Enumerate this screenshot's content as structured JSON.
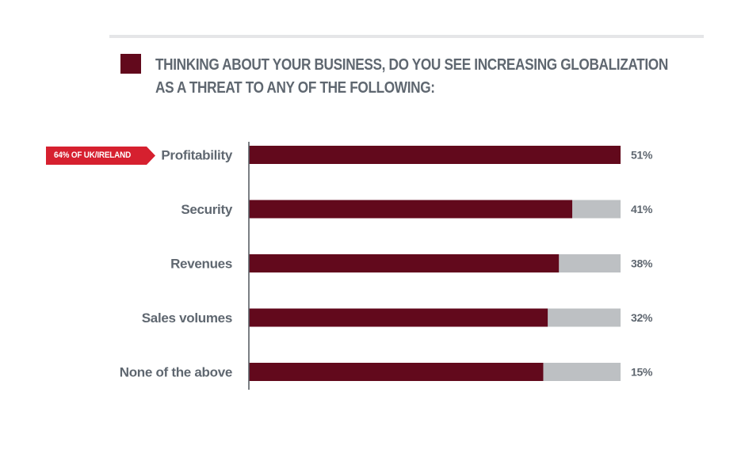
{
  "colors": {
    "bar_fill": "#62091c",
    "bar_track": "#bdc0c3",
    "title_marker": "#62091c",
    "text": "#5f6770",
    "callout_fill": "#d6202f",
    "axis": "#5a5f66"
  },
  "title": {
    "line1": "THINKING ABOUT YOUR BUSINESS, DO YOU SEE INCREASING GLOBALIZATION",
    "line2": "AS A THREAT TO ANY OF THE FOLLOWING:"
  },
  "callout": {
    "text": "64% OF UK/IRELAND",
    "category": "Profitability"
  },
  "chart_data": {
    "type": "bar",
    "orientation": "horizontal",
    "categories": [
      "Profitability",
      "Security",
      "Revenues",
      "Sales volumes",
      "None of the above"
    ],
    "values": [
      51,
      41,
      38,
      32,
      15
    ],
    "value_labels": [
      "51%",
      "41%",
      "38%",
      "32%",
      "15%"
    ],
    "title": "THINKING ABOUT YOUR BUSINESS, DO YOU SEE INCREASING GLOBALIZATION AS A THREAT TO ANY OF THE FOLLOWING:",
    "xlabel": "",
    "ylabel": "",
    "grid": false,
    "legend": "none"
  }
}
